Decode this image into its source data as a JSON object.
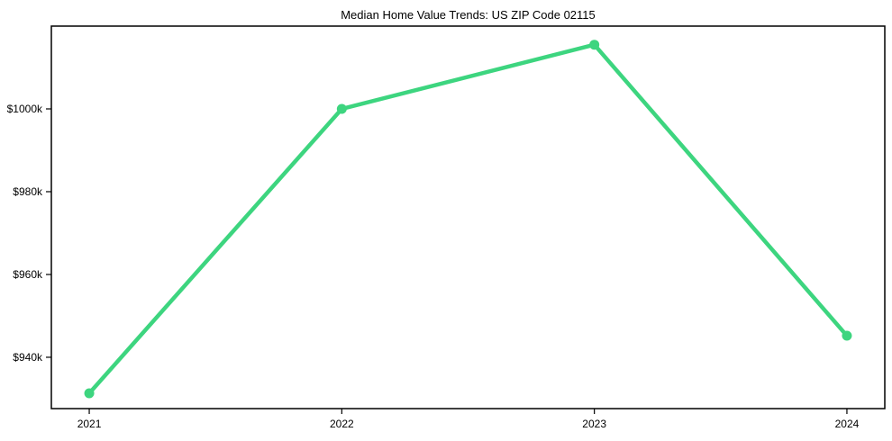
{
  "chart_data": {
    "type": "line",
    "title": "Median Home Value Trends: US ZIP Code 02115",
    "x": [
      2021,
      2022,
      2023,
      2024
    ],
    "x_tick_labels": [
      "2021",
      "2022",
      "2023",
      "2024"
    ],
    "values": [
      931.3,
      1000.0,
      1015.5,
      945.2
    ],
    "y_ticks": [
      {
        "value": 940,
        "label": "$940k"
      },
      {
        "value": 960,
        "label": "$960k"
      },
      {
        "value": 980,
        "label": "$980k"
      },
      {
        "value": 1000,
        "label": "$1000k"
      }
    ],
    "xlim": [
      2020.85,
      2024.15
    ],
    "ylim": [
      927.6,
      1020.0
    ],
    "grid": false,
    "legend": false,
    "line_color": "#3dd57f",
    "marker_color": "#3dd57f",
    "axis_color": "#000000",
    "text_color": "#000000",
    "background_color": "#ffffff"
  }
}
